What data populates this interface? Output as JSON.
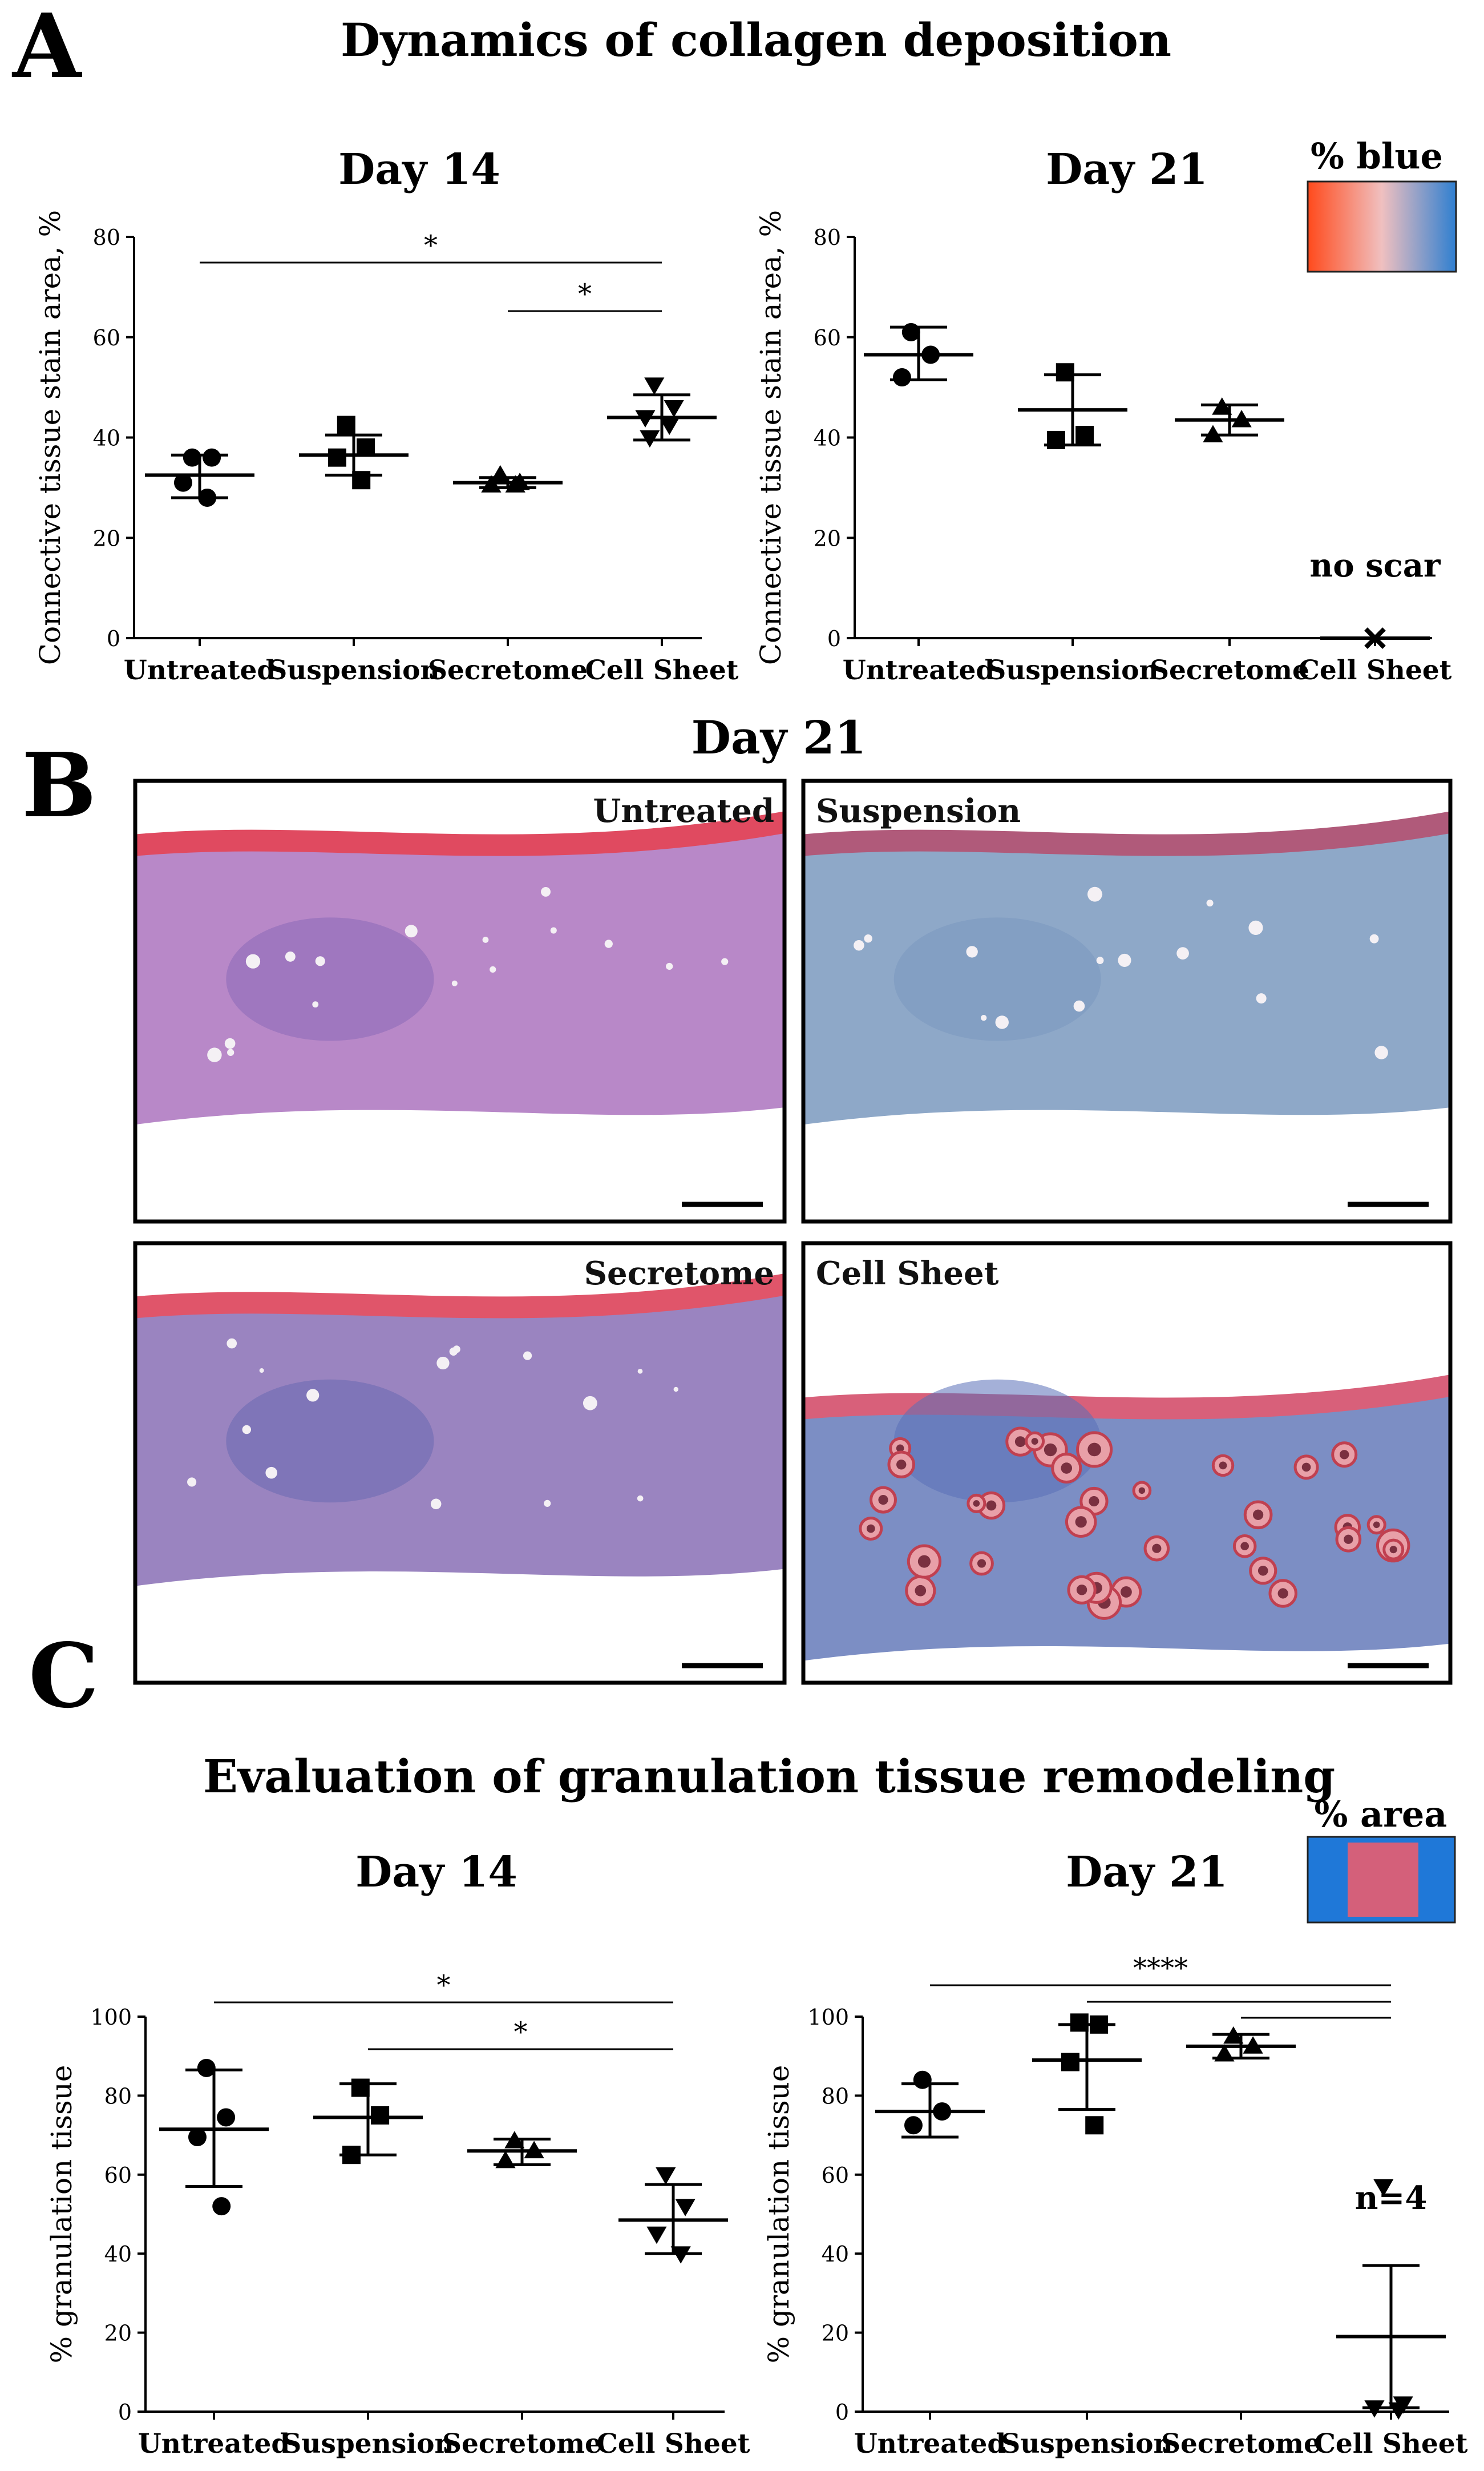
{
  "panel_letters": {
    "a": "A",
    "b": "B",
    "c": "C"
  },
  "sectionA": {
    "title": "Dynamics of collagen deposition",
    "legend": {
      "label": "% blue",
      "gradient": [
        "#ff4a1c",
        "#f0c0c0",
        "#2f7fd0"
      ]
    }
  },
  "sectionB": {
    "title": "Day 21",
    "panels": [
      {
        "label": "Untreated",
        "palette": "pink"
      },
      {
        "label": "Suspension",
        "palette": "blue"
      },
      {
        "label": "Secretome",
        "palette": "purple"
      },
      {
        "label": "Cell Sheet",
        "palette": "follicles"
      }
    ]
  },
  "sectionC": {
    "title": "Evaluation of granulation tissue remodeling",
    "legend": {
      "label": "% area",
      "outer": "#1f78d8",
      "inner": "#d4607a"
    }
  },
  "chart_data": [
    {
      "type": "scatter",
      "id": "a_day14",
      "title": "Day 14",
      "ylabel": "Connective tissue stain area, %",
      "categories": [
        "Untreated",
        "Suspension",
        "Secretome",
        "Cell Sheet"
      ],
      "ylim": [
        0,
        80
      ],
      "yticks": [
        0,
        20,
        40,
        60,
        80
      ],
      "series": [
        {
          "marker": "circle",
          "points": [
            36,
            36,
            31,
            28
          ],
          "mean": 32.5,
          "sd": [
            28,
            36.5
          ]
        },
        {
          "marker": "square",
          "points": [
            42.5,
            38,
            36,
            31.5
          ],
          "mean": 36.5,
          "sd": [
            32.5,
            40.5
          ]
        },
        {
          "marker": "triangle",
          "points": [
            32.5,
            31,
            30.5,
            30.5
          ],
          "mean": 31,
          "sd": [
            30,
            32
          ]
        },
        {
          "marker": "triangle-down",
          "points": [
            50.5,
            46,
            44,
            42.5,
            40
          ],
          "mean": 44,
          "sd": [
            39.5,
            48.5
          ]
        }
      ],
      "significance": [
        {
          "from": 0,
          "to": 3,
          "label": "*"
        },
        {
          "from": 2,
          "to": 3,
          "label": "*"
        }
      ]
    },
    {
      "type": "scatter",
      "id": "a_day21",
      "title": "Day 21",
      "ylabel": "Connective tissue stain area, %",
      "categories": [
        "Untreated",
        "Suspension",
        "Secretome",
        "Cell Sheet"
      ],
      "ylim": [
        0,
        80
      ],
      "yticks": [
        0,
        20,
        40,
        60,
        80
      ],
      "series": [
        {
          "marker": "circle",
          "points": [
            61,
            56.5,
            52
          ],
          "mean": 56.5,
          "sd": [
            51.5,
            62
          ]
        },
        {
          "marker": "square",
          "points": [
            53,
            40.5,
            39.5
          ],
          "mean": 45.5,
          "sd": [
            38.5,
            52.5
          ]
        },
        {
          "marker": "triangle",
          "points": [
            46,
            43.5,
            40.5
          ],
          "mean": 43.5,
          "sd": [
            40.5,
            46.5
          ]
        },
        {
          "marker": "cross",
          "points": [
            0
          ],
          "mean": 0,
          "sd": null
        }
      ],
      "annotation": {
        "text": "no scar",
        "category": 3
      },
      "significance": []
    },
    {
      "type": "scatter",
      "id": "c_day14",
      "title": "Day 14",
      "ylabel": "% granulation tissue",
      "categories": [
        "Untreated",
        "Suspension",
        "Secretome",
        "Cell Sheet"
      ],
      "ylim": [
        0,
        100
      ],
      "yticks": [
        0,
        20,
        40,
        60,
        80,
        100
      ],
      "series": [
        {
          "marker": "circle",
          "points": [
            87,
            74.5,
            69.5,
            52
          ],
          "mean": 71.5,
          "sd": [
            57,
            86.5
          ]
        },
        {
          "marker": "square",
          "points": [
            82,
            75,
            65
          ],
          "mean": 74.5,
          "sd": [
            65,
            83
          ]
        },
        {
          "marker": "triangle",
          "points": [
            68.5,
            66,
            63.5
          ],
          "mean": 66,
          "sd": [
            62.5,
            69
          ]
        },
        {
          "marker": "triangle-down",
          "points": [
            60,
            52,
            45,
            40
          ],
          "mean": 48.5,
          "sd": [
            40,
            57.5
          ]
        }
      ],
      "significance": [
        {
          "from": 0,
          "to": 3,
          "label": "*"
        },
        {
          "from": 1,
          "to": 3,
          "label": "*"
        }
      ]
    },
    {
      "type": "scatter",
      "id": "c_day21",
      "title": "Day 21",
      "ylabel": "% granulation tissue",
      "categories": [
        "Untreated",
        "Suspension",
        "Secretome",
        "Cell Sheet"
      ],
      "ylim": [
        0,
        100
      ],
      "yticks": [
        0,
        20,
        40,
        60,
        80,
        100
      ],
      "series": [
        {
          "marker": "circle",
          "points": [
            84,
            76,
            72.5
          ],
          "mean": 76,
          "sd": [
            69.5,
            83
          ]
        },
        {
          "marker": "square",
          "points": [
            98.5,
            98,
            88.5,
            72.5
          ],
          "mean": 89,
          "sd": [
            76.5,
            98
          ]
        },
        {
          "marker": "triangle",
          "points": [
            95,
            92.5,
            90.5
          ],
          "mean": 92.5,
          "sd": [
            89.5,
            95.5
          ]
        },
        {
          "marker": "triangle-down",
          "points": [
            57,
            2,
            1,
            0.5
          ],
          "mean": 19,
          "sd": [
            1,
            37
          ]
        }
      ],
      "annotation": {
        "text": "n=4",
        "category": 3
      },
      "significance": [
        {
          "from": 0,
          "to": 3,
          "label": "****"
        },
        {
          "from": 1,
          "to": 3,
          "label": ""
        },
        {
          "from": 2,
          "to": 3,
          "label": ""
        }
      ]
    }
  ]
}
